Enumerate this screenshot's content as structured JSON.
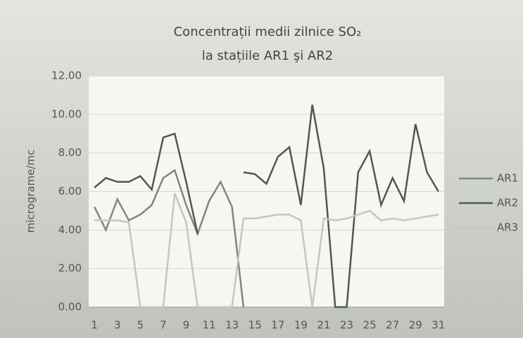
{
  "chart_data": {
    "type": "line",
    "title": "Concentrații medii zilnice SO₂",
    "subtitle": "la stațiile AR1 şi AR2",
    "y_label": "micrograme/mc",
    "categories": [
      "1",
      null,
      "3",
      null,
      "5",
      null,
      "7",
      null,
      "9",
      null,
      "11",
      null,
      "13",
      null,
      "15",
      null,
      "17",
      null,
      "19",
      null,
      "21",
      null,
      "23",
      null,
      "25",
      null,
      "27",
      null,
      "29",
      null,
      "31"
    ],
    "series": [
      {
        "name": "AR1",
        "color": "#7d8a78",
        "values": [
          5.2,
          4.0,
          5.6,
          4.5,
          4.8,
          5.3,
          6.7,
          7.1,
          5.3,
          3.8,
          5.5,
          6.5,
          5.2,
          0,
          null,
          null,
          null,
          null,
          null,
          null,
          null,
          null,
          null,
          null,
          null,
          null,
          null,
          null,
          null,
          null,
          null
        ]
      },
      {
        "name": "AR2",
        "color": "#4e5a50",
        "values": [
          6.2,
          6.7,
          6.5,
          6.5,
          6.8,
          6.1,
          8.8,
          9.0,
          6.5,
          3.8,
          null,
          null,
          null,
          7.0,
          6.9,
          6.4,
          7.8,
          8.3,
          5.3,
          10.5,
          7.2,
          0,
          0,
          7.0,
          8.1,
          5.3,
          6.7,
          5.5,
          9.5,
          7.0,
          6.0
        ]
      },
      {
        "name": "AR3",
        "color": "#c3c7bf",
        "values": [
          4.5,
          4.5,
          4.5,
          4.4,
          0,
          0,
          0,
          5.9,
          4.4,
          0,
          0,
          0,
          0,
          4.6,
          4.6,
          4.7,
          4.8,
          4.8,
          4.5,
          0,
          4.6,
          4.5,
          4.6,
          4.8,
          5.0,
          4.5,
          4.6,
          4.5,
          4.6,
          4.7,
          4.8
        ]
      }
    ],
    "ylim": [
      0,
      12
    ],
    "yticks": [
      {
        "value": 0,
        "label": "0.00"
      },
      {
        "value": 2,
        "label": "2.00"
      },
      {
        "value": 4,
        "label": "4.00"
      },
      {
        "value": 6,
        "label": "6.00"
      },
      {
        "value": 8,
        "label": "8.00"
      },
      {
        "value": 10,
        "label": "10.00"
      },
      {
        "value": 12,
        "label": "12.00"
      }
    ],
    "grid": true,
    "legend": "right"
  }
}
